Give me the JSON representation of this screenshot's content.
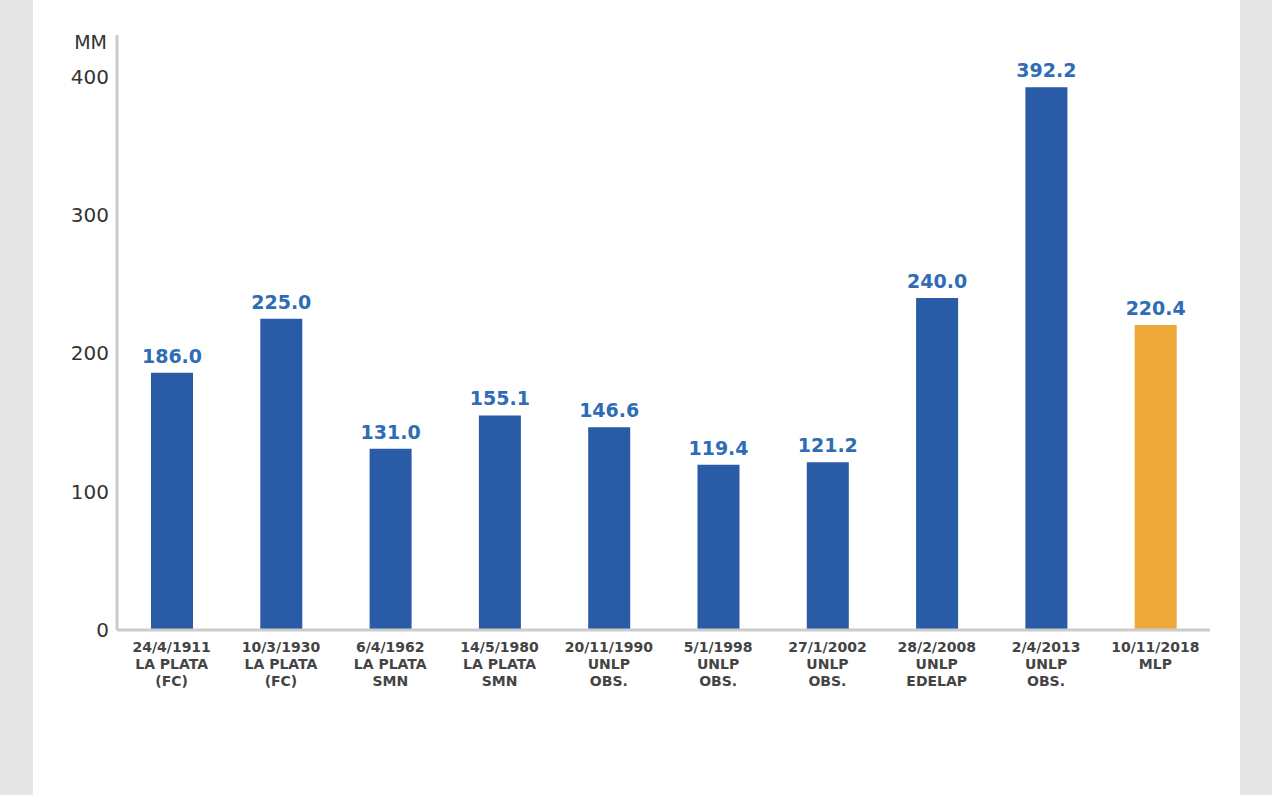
{
  "chart_data": {
    "type": "bar",
    "y_label": "MM",
    "categories": [
      "24/4/1911\nLA PLATA\n(FC)",
      "10/3/1930\nLA PLATA\n(FC)",
      "6/4/1962\nLA PLATA\nSMN",
      "14/5/1980\nLA PLATA\nSMN",
      "20/11/1990\nUNLP\nOBS.",
      "5/1/1998\nUNLP\nOBS.",
      "27/1/2002\nUNLP\nOBS.",
      "28/2/2008\nUNLP\nEDELAP",
      "2/4/2013\nUNLP\nOBS.",
      "10/11/2018\nMLP"
    ],
    "values": [
      186.0,
      225.0,
      131.0,
      155.1,
      146.6,
      119.4,
      121.2,
      240.0,
      392.2,
      220.4
    ],
    "value_labels": [
      "186.0",
      "225.0",
      "131.0",
      "155.1",
      "146.6",
      "119.4",
      "121.2",
      "240.0",
      "392.2",
      "220.4"
    ],
    "colors": [
      "#2a5ba6",
      "#2a5ba6",
      "#2a5ba6",
      "#2a5ba6",
      "#2a5ba6",
      "#2a5ba6",
      "#2a5ba6",
      "#2a5ba6",
      "#2a5ba6",
      "#eea93a"
    ],
    "ylim": [
      0,
      430
    ],
    "yticks": [
      0,
      100,
      200,
      300,
      400
    ],
    "grid": false,
    "data_labels": true
  }
}
